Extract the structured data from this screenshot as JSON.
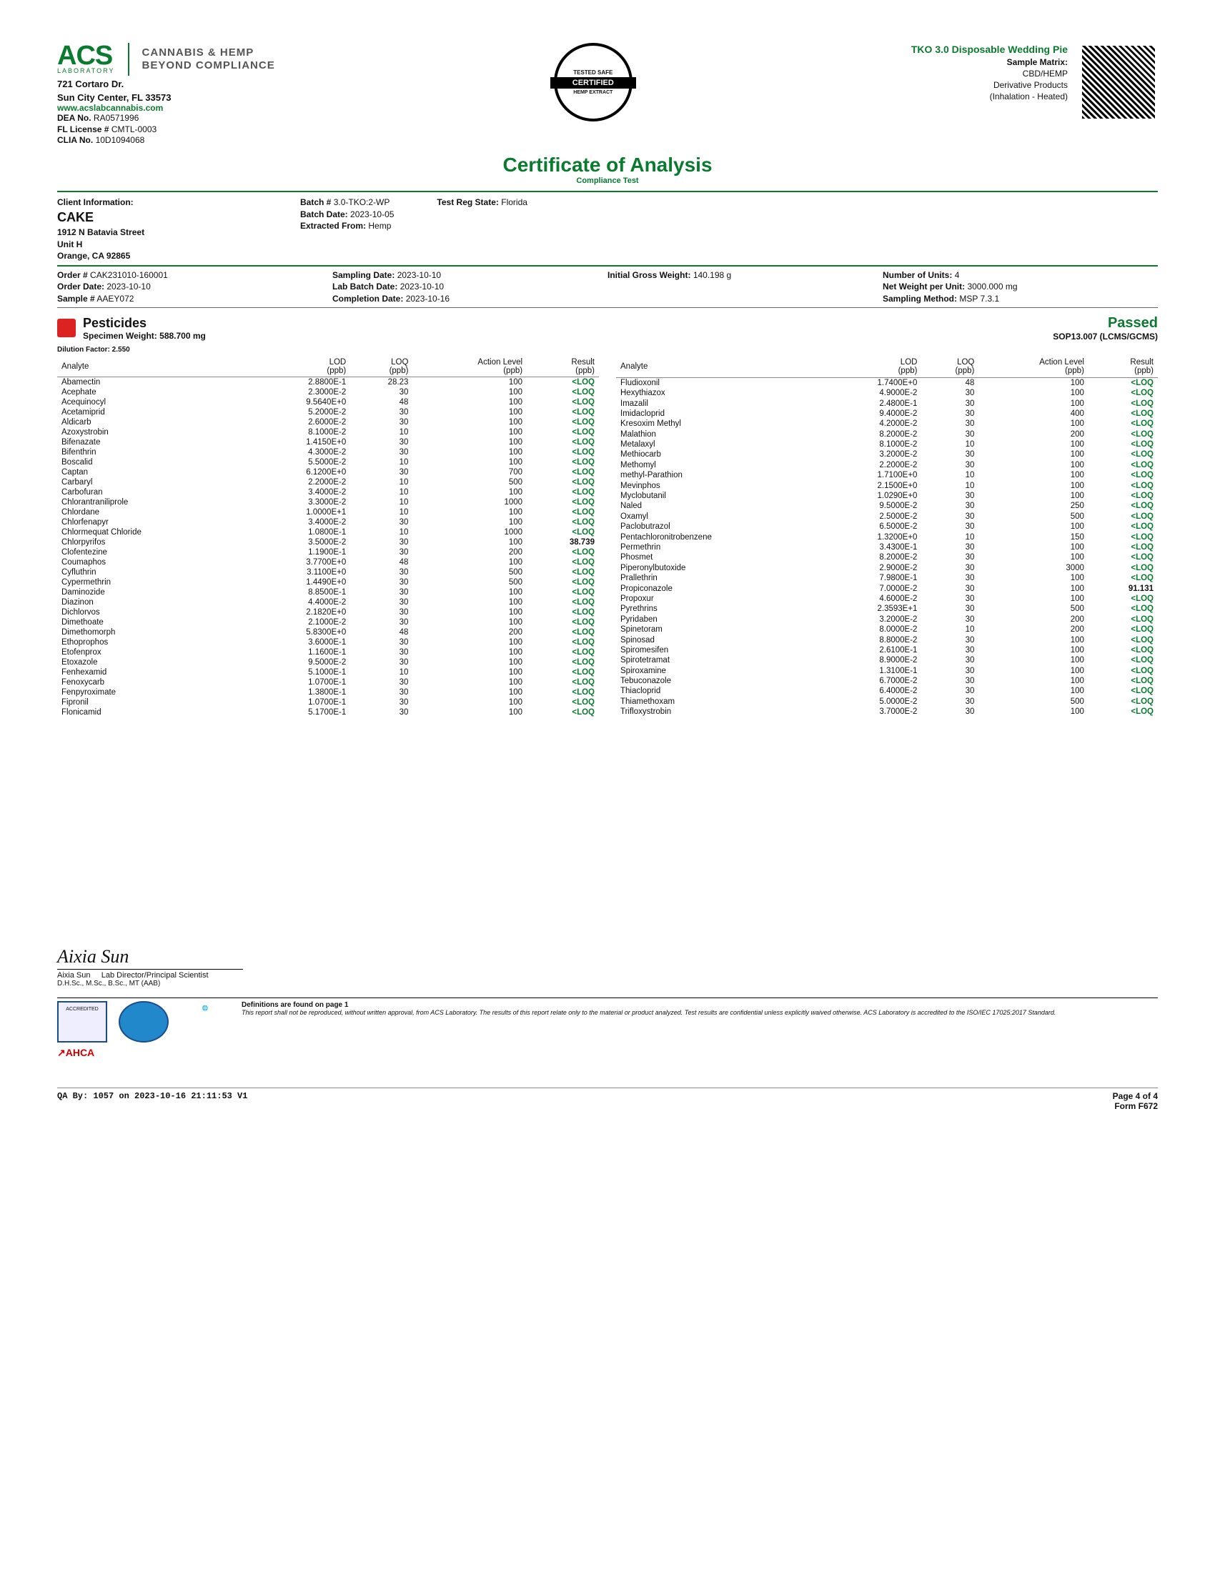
{
  "logo": {
    "main": "ACS",
    "sub": "LABORATORY",
    "right1": "CANNABIS & HEMP",
    "right2": "BEYOND COMPLIANCE"
  },
  "lab_address": {
    "line1": "721 Cortaro Dr.",
    "line2": "Sun City Center, FL 33573",
    "url": "www.acslabcannabis.com",
    "dea_label": "DEA No.",
    "dea": "RA0571996",
    "fl_label": "FL License #",
    "fl": "CMTL-0003",
    "clia_label": "CLIA No.",
    "clia": "10D1094068"
  },
  "cert_badge": {
    "top": "TESTED SAFE",
    "mid": "CERTIFIED",
    "bot": "HEMP EXTRACT",
    "sm": "SM"
  },
  "sample": {
    "title": "TKO 3.0 Disposable Wedding Pie",
    "matrix_label": "Sample Matrix:",
    "matrix1": "CBD/HEMP",
    "matrix2": "Derivative Products",
    "matrix3": "(Inhalation - Heated)"
  },
  "coa": {
    "title": "Certificate of Analysis",
    "sub": "Compliance Test"
  },
  "client": {
    "heading": "Client Information:",
    "name": "CAKE",
    "addr1": "1912 N Batavia Street",
    "addr2": "Unit H",
    "addr3": "Orange, CA 92865"
  },
  "batch": {
    "batch_no_label": "Batch #",
    "batch_no": "3.0-TKO:2-WP",
    "batch_date_label": "Batch Date:",
    "batch_date": "2023-10-05",
    "extracted_label": "Extracted From:",
    "extracted": "Hemp",
    "reg_state_label": "Test Reg State:",
    "reg_state": "Florida"
  },
  "order": {
    "order_no_label": "Order #",
    "order_no": "CAK231010-160001",
    "order_date_label": "Order Date:",
    "order_date": "2023-10-10",
    "sample_no_label": "Sample #",
    "sample_no": "AAEY072",
    "sampling_date_label": "Sampling Date:",
    "sampling_date": "2023-10-10",
    "lab_batch_label": "Lab Batch Date:",
    "lab_batch": "2023-10-10",
    "completion_label": "Completion Date:",
    "completion": "2023-10-16",
    "gross_label": "Initial Gross Weight:",
    "gross": "140.198 g",
    "units_label": "Number of Units:",
    "units": "4",
    "netw_label": "Net Weight per Unit:",
    "netw": "3000.000 mg",
    "method_label": "Sampling Method:",
    "method": "MSP 7.3.1"
  },
  "pesticides": {
    "title": "Pesticides",
    "spec_label": "Specimen Weight:",
    "spec": "588.700 mg",
    "passed": "Passed",
    "sop": "SOP13.007 (LCMS/GCMS)",
    "dilution_label": "Dilution Factor:",
    "dilution": "2.550",
    "columns": [
      "Analyte",
      "LOD (ppb)",
      "LOQ (ppb)",
      "Action Level (ppb)",
      "Result (ppb)"
    ],
    "left": [
      [
        "Abamectin",
        "2.8800E-1",
        "28.23",
        "100",
        "<LOQ"
      ],
      [
        "Acephate",
        "2.3000E-2",
        "30",
        "100",
        "<LOQ"
      ],
      [
        "Acequinocyl",
        "9.5640E+0",
        "48",
        "100",
        "<LOQ"
      ],
      [
        "Acetamiprid",
        "5.2000E-2",
        "30",
        "100",
        "<LOQ"
      ],
      [
        "Aldicarb",
        "2.6000E-2",
        "30",
        "100",
        "<LOQ"
      ],
      [
        "Azoxystrobin",
        "8.1000E-2",
        "10",
        "100",
        "<LOQ"
      ],
      [
        "Bifenazate",
        "1.4150E+0",
        "30",
        "100",
        "<LOQ"
      ],
      [
        "Bifenthrin",
        "4.3000E-2",
        "30",
        "100",
        "<LOQ"
      ],
      [
        "Boscalid",
        "5.5000E-2",
        "10",
        "100",
        "<LOQ"
      ],
      [
        "Captan",
        "6.1200E+0",
        "30",
        "700",
        "<LOQ"
      ],
      [
        "Carbaryl",
        "2.2000E-2",
        "10",
        "500",
        "<LOQ"
      ],
      [
        "Carbofuran",
        "3.4000E-2",
        "10",
        "100",
        "<LOQ"
      ],
      [
        "Chlorantraniliprole",
        "3.3000E-2",
        "10",
        "1000",
        "<LOQ"
      ],
      [
        "Chlordane",
        "1.0000E+1",
        "10",
        "100",
        "<LOQ"
      ],
      [
        "Chlorfenapyr",
        "3.4000E-2",
        "30",
        "100",
        "<LOQ"
      ],
      [
        "Chlormequat Chloride",
        "1.0800E-1",
        "10",
        "1000",
        "<LOQ"
      ],
      [
        "Chlorpyrifos",
        "3.5000E-2",
        "30",
        "100",
        "38.739"
      ],
      [
        "Clofentezine",
        "1.1900E-1",
        "30",
        "200",
        "<LOQ"
      ],
      [
        "Coumaphos",
        "3.7700E+0",
        "48",
        "100",
        "<LOQ"
      ],
      [
        "Cyfluthrin",
        "3.1100E+0",
        "30",
        "500",
        "<LOQ"
      ],
      [
        "Cypermethrin",
        "1.4490E+0",
        "30",
        "500",
        "<LOQ"
      ],
      [
        "Daminozide",
        "8.8500E-1",
        "30",
        "100",
        "<LOQ"
      ],
      [
        "Diazinon",
        "4.4000E-2",
        "30",
        "100",
        "<LOQ"
      ],
      [
        "Dichlorvos",
        "2.1820E+0",
        "30",
        "100",
        "<LOQ"
      ],
      [
        "Dimethoate",
        "2.1000E-2",
        "30",
        "100",
        "<LOQ"
      ],
      [
        "Dimethomorph",
        "5.8300E+0",
        "48",
        "200",
        "<LOQ"
      ],
      [
        "Ethoprophos",
        "3.6000E-1",
        "30",
        "100",
        "<LOQ"
      ],
      [
        "Etofenprox",
        "1.1600E-1",
        "30",
        "100",
        "<LOQ"
      ],
      [
        "Etoxazole",
        "9.5000E-2",
        "30",
        "100",
        "<LOQ"
      ],
      [
        "Fenhexamid",
        "5.1000E-1",
        "10",
        "100",
        "<LOQ"
      ],
      [
        "Fenoxycarb",
        "1.0700E-1",
        "30",
        "100",
        "<LOQ"
      ],
      [
        "Fenpyroximate",
        "1.3800E-1",
        "30",
        "100",
        "<LOQ"
      ],
      [
        "Fipronil",
        "1.0700E-1",
        "30",
        "100",
        "<LOQ"
      ],
      [
        "Flonicamid",
        "5.1700E-1",
        "30",
        "100",
        "<LOQ"
      ]
    ],
    "right": [
      [
        "Fludioxonil",
        "1.7400E+0",
        "48",
        "100",
        "<LOQ"
      ],
      [
        "Hexythiazox",
        "4.9000E-2",
        "30",
        "100",
        "<LOQ"
      ],
      [
        "Imazalil",
        "2.4800E-1",
        "30",
        "100",
        "<LOQ"
      ],
      [
        "Imidacloprid",
        "9.4000E-2",
        "30",
        "400",
        "<LOQ"
      ],
      [
        "Kresoxim Methyl",
        "4.2000E-2",
        "30",
        "100",
        "<LOQ"
      ],
      [
        "Malathion",
        "8.2000E-2",
        "30",
        "200",
        "<LOQ"
      ],
      [
        "Metalaxyl",
        "8.1000E-2",
        "10",
        "100",
        "<LOQ"
      ],
      [
        "Methiocarb",
        "3.2000E-2",
        "30",
        "100",
        "<LOQ"
      ],
      [
        "Methomyl",
        "2.2000E-2",
        "30",
        "100",
        "<LOQ"
      ],
      [
        "methyl-Parathion",
        "1.7100E+0",
        "10",
        "100",
        "<LOQ"
      ],
      [
        "Mevinphos",
        "2.1500E+0",
        "10",
        "100",
        "<LOQ"
      ],
      [
        "Myclobutanil",
        "1.0290E+0",
        "30",
        "100",
        "<LOQ"
      ],
      [
        "Naled",
        "9.5000E-2",
        "30",
        "250",
        "<LOQ"
      ],
      [
        "Oxamyl",
        "2.5000E-2",
        "30",
        "500",
        "<LOQ"
      ],
      [
        "Paclobutrazol",
        "6.5000E-2",
        "30",
        "100",
        "<LOQ"
      ],
      [
        "Pentachloronitrobenzene",
        "1.3200E+0",
        "10",
        "150",
        "<LOQ"
      ],
      [
        "Permethrin",
        "3.4300E-1",
        "30",
        "100",
        "<LOQ"
      ],
      [
        "Phosmet",
        "8.2000E-2",
        "30",
        "100",
        "<LOQ"
      ],
      [
        "Piperonylbutoxide",
        "2.9000E-2",
        "30",
        "3000",
        "<LOQ"
      ],
      [
        "Prallethrin",
        "7.9800E-1",
        "30",
        "100",
        "<LOQ"
      ],
      [
        "Propiconazole",
        "7.0000E-2",
        "30",
        "100",
        "91.131"
      ],
      [
        "Propoxur",
        "4.6000E-2",
        "30",
        "100",
        "<LOQ"
      ],
      [
        "Pyrethrins",
        "2.3593E+1",
        "30",
        "500",
        "<LOQ"
      ],
      [
        "Pyridaben",
        "3.2000E-2",
        "30",
        "200",
        "<LOQ"
      ],
      [
        "Spinetoram",
        "8.0000E-2",
        "10",
        "200",
        "<LOQ"
      ],
      [
        "Spinosad",
        "8.8000E-2",
        "30",
        "100",
        "<LOQ"
      ],
      [
        "Spiromesifen",
        "2.6100E-1",
        "30",
        "100",
        "<LOQ"
      ],
      [
        "Spirotetramat",
        "8.9000E-2",
        "30",
        "100",
        "<LOQ"
      ],
      [
        "Spiroxamine",
        "1.3100E-1",
        "30",
        "100",
        "<LOQ"
      ],
      [
        "Tebuconazole",
        "6.7000E-2",
        "30",
        "100",
        "<LOQ"
      ],
      [
        "Thiacloprid",
        "6.4000E-2",
        "30",
        "100",
        "<LOQ"
      ],
      [
        "Thiamethoxam",
        "5.0000E-2",
        "30",
        "500",
        "<LOQ"
      ],
      [
        "Trifloxystrobin",
        "3.7000E-2",
        "30",
        "100",
        "<LOQ"
      ]
    ]
  },
  "signature": {
    "script": "Aixia Sun",
    "name": "Aixia Sun",
    "role": "Lab Director/Principal Scientist",
    "creds": "D.H.Sc., M.Sc., B.Sc., MT (AAB)"
  },
  "footer": {
    "defs_title": "Definitions are found on page 1",
    "disclaimer": "This report shall not be reproduced, without written approval, from ACS Laboratory. The results of this report relate only to the material or product analyzed. Test results are confidential unless explicitly waived otherwise. ACS Laboratory is accredited to the ISO/IEC 17025:2017 Standard.",
    "qa": "QA By: 1057 on 2023-10-16 21:11:53 V1",
    "page": "Page 4 of 4",
    "form": "Form F672"
  }
}
